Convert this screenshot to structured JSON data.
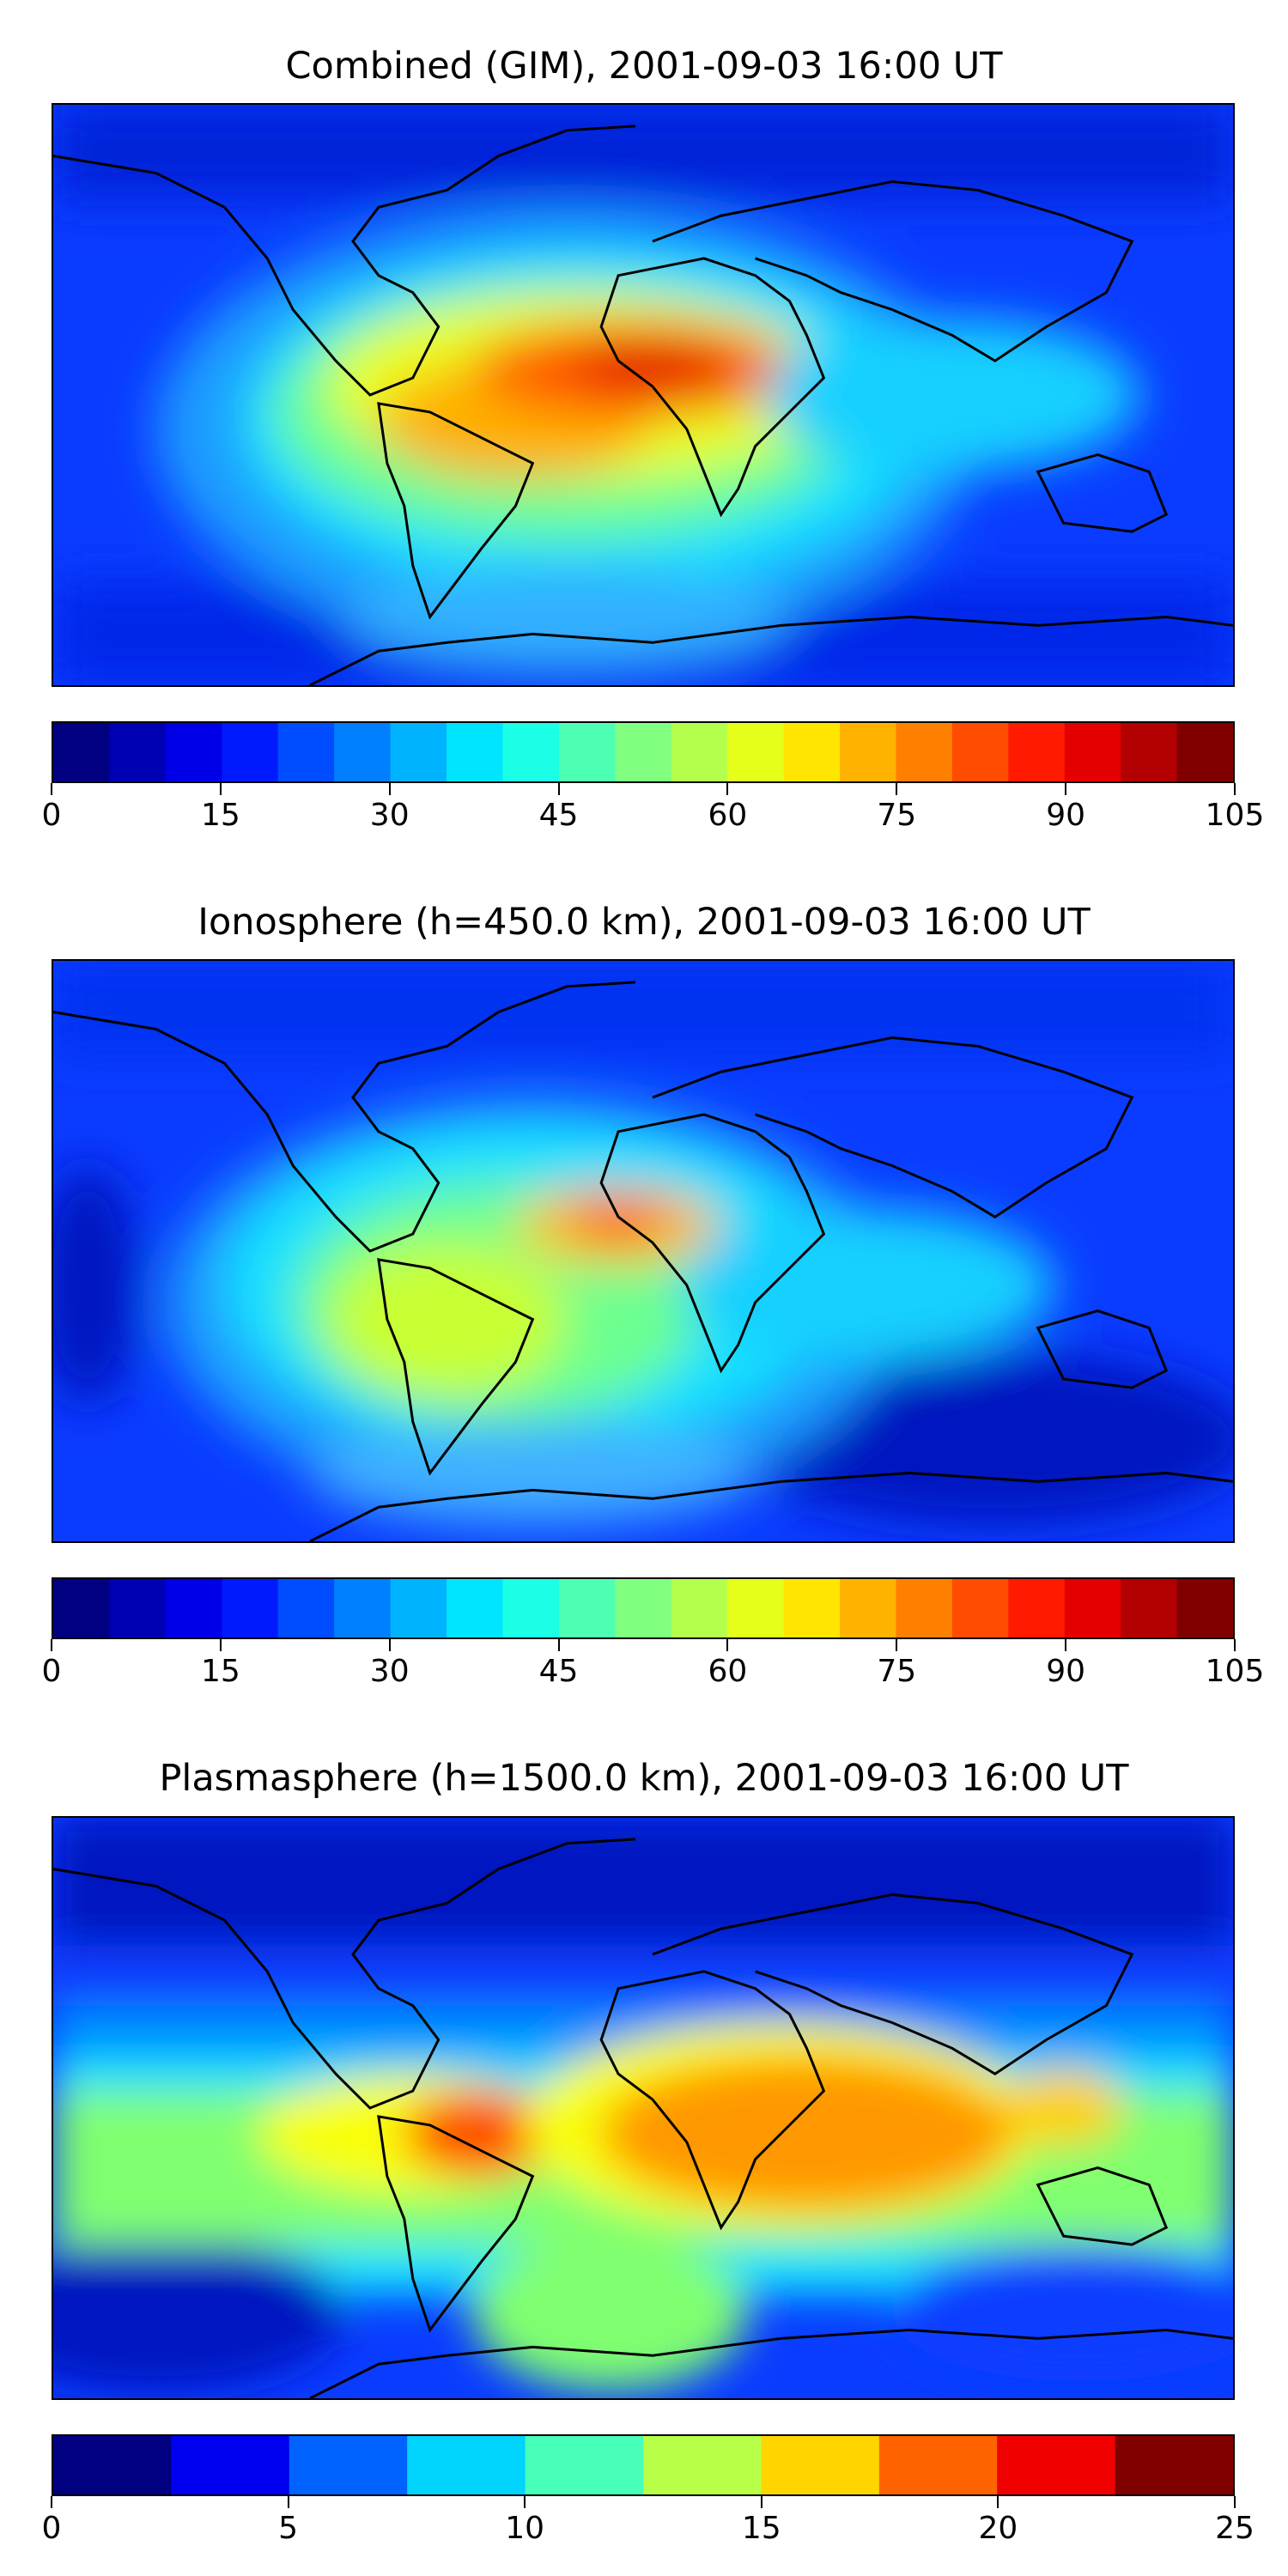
{
  "panels": [
    {
      "title": "Combined (GIM), 2001-09-03 16:00 UT",
      "colorbar_ticks": [
        "0",
        "15",
        "30",
        "45",
        "60",
        "75",
        "90",
        "105"
      ],
      "colorbar_min": 0,
      "colorbar_max": 105,
      "colorbar_levels": 21
    },
    {
      "title": "Ionosphere  (h=450.0 km), 2001-09-03 16:00 UT",
      "colorbar_ticks": [
        "0",
        "15",
        "30",
        "45",
        "60",
        "75",
        "90",
        "105"
      ],
      "colorbar_min": 0,
      "colorbar_max": 105,
      "colorbar_levels": 21
    },
    {
      "title": "Plasmasphere (h=1500.0 km), 2001-09-03 16:00 UT",
      "colorbar_ticks": [
        "0",
        "5",
        "10",
        "15",
        "20",
        "25"
      ],
      "colorbar_min": 0,
      "colorbar_max": 25,
      "colorbar_levels": 10
    }
  ],
  "colormap": "jet"
}
